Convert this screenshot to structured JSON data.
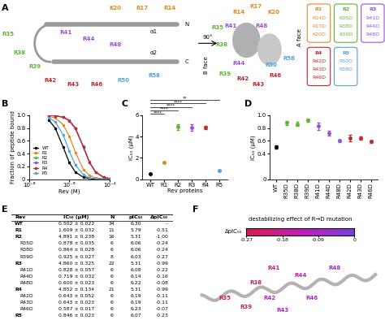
{
  "panel_labels": [
    "A",
    "B",
    "C",
    "D",
    "E",
    "F"
  ],
  "panel_a": {
    "left_view": {
      "labels": [
        "R14",
        "R17",
        "K20",
        "R35",
        "R38",
        "R39",
        "R41",
        "R44",
        "R48",
        "R42",
        "R43",
        "R46",
        "R50",
        "R58"
      ],
      "termini": [
        "N",
        "C"
      ],
      "helices": [
        "α1",
        "α2"
      ]
    },
    "rotation": "90°",
    "right_view": {
      "labels": [
        "R14",
        "R17",
        "K20",
        "R41",
        "R44",
        "R48",
        "R35",
        "R38",
        "R39",
        "R42",
        "R43",
        "R46",
        "R50",
        "R58"
      ],
      "faces": [
        "B face",
        "A face"
      ]
    },
    "groups": [
      {
        "name": "R1",
        "color": "#e08a1e",
        "members": [
          "R14D",
          "R17D",
          "K20D"
        ]
      },
      {
        "name": "R2",
        "color": "#5cb82e",
        "members": [
          "R35D",
          "R38D",
          "R39D"
        ]
      },
      {
        "name": "R3",
        "color": "#9a4fd6",
        "members": [
          "R41D",
          "R44D",
          "R48D"
        ]
      },
      {
        "name": "R4",
        "color": "#c0282d",
        "members": [
          "R42D",
          "R43D",
          "R46D"
        ]
      },
      {
        "name": "R5",
        "color": "#4fa3e0",
        "members": [
          "R50D",
          "R58D"
        ]
      }
    ]
  },
  "chart_data": [
    {
      "type": "line",
      "xlabel": "Rev (M)",
      "ylabel": "Fraction of peptide bound",
      "log": "x",
      "x": [
        1e-07,
        2e-07,
        5e-07,
        1e-06,
        2e-06,
        5e-06,
        1e-05,
        2e-05,
        5e-05,
        0.0001
      ],
      "xlim": [
        1e-08,
        0.0001
      ],
      "xticks": [
        {
          "value": 1e-08,
          "label": "10⁻⁸"
        },
        {
          "value": 1e-06,
          "label": "10⁻⁶"
        },
        {
          "value": 0.0001,
          "label": "10⁻⁴"
        }
      ],
      "ylim": [
        0,
        1.0
      ],
      "yticks": [
        0,
        0.2,
        0.4,
        0.6,
        0.8,
        1.0
      ],
      "legend": "lower left",
      "series": [
        {
          "name": "WT",
          "color": "#000000",
          "values": [
            0.92,
            0.8,
            0.5,
            0.26,
            0.11,
            0.03,
            0.01,
            0.0,
            0.0,
            0.0
          ]
        },
        {
          "name": "R1",
          "color": "#e08a1e",
          "values": [
            0.98,
            0.96,
            0.85,
            0.67,
            0.42,
            0.15,
            0.06,
            0.02,
            0.01,
            0.0
          ]
        },
        {
          "name": "R2",
          "color": "#5cb82e",
          "values": [
            1.0,
            0.99,
            0.97,
            0.92,
            0.8,
            0.5,
            0.26,
            0.11,
            0.03,
            0.01
          ]
        },
        {
          "name": "R3",
          "color": "#9a4fd6",
          "values": [
            1.0,
            0.99,
            0.97,
            0.92,
            0.8,
            0.51,
            0.27,
            0.11,
            0.03,
            0.01
          ]
        },
        {
          "name": "R4",
          "color": "#c0282d",
          "values": [
            1.0,
            0.99,
            0.97,
            0.91,
            0.79,
            0.5,
            0.26,
            0.11,
            0.03,
            0.01
          ]
        },
        {
          "name": "R5",
          "color": "#4fa3e0",
          "values": [
            0.96,
            0.9,
            0.69,
            0.44,
            0.22,
            0.07,
            0.02,
            0.01,
            0.0,
            0.0
          ]
        }
      ]
    },
    {
      "type": "scatter",
      "xlabel": "Rev proteins",
      "ylabel": "IC₅₀ (μM)",
      "categories": [
        "WT",
        "R1",
        "R2",
        "R3",
        "R4",
        "R5"
      ],
      "values": [
        0.502,
        1.609,
        4.891,
        4.86,
        4.852,
        0.846
      ],
      "errors": [
        0.022,
        0.032,
        0.238,
        0.325,
        0.134,
        0.023
      ],
      "colors": [
        "#000000",
        "#e08a1e",
        "#5cb82e",
        "#9a4fd6",
        "#c0282d",
        "#4fa3e0"
      ],
      "ylim": [
        0,
        6
      ],
      "yticks": [
        0,
        2,
        4,
        6
      ],
      "comparisons": [
        {
          "from": "WT",
          "to": "R5",
          "label": "**"
        },
        {
          "from": "WT",
          "to": "R4",
          "label": "****"
        },
        {
          "from": "WT",
          "to": "R3",
          "label": "****"
        },
        {
          "from": "WT",
          "to": "R2",
          "label": "****"
        },
        {
          "from": "WT",
          "to": "R1",
          "label": "****"
        }
      ]
    },
    {
      "type": "scatter",
      "ylabel": "IC₅₀ (μM)",
      "categories": [
        "WT",
        "R35D",
        "R38D",
        "R39D",
        "R41D",
        "R44D",
        "R48D",
        "R42D",
        "R43D",
        "R46D"
      ],
      "values": [
        0.502,
        0.878,
        0.864,
        0.925,
        0.828,
        0.719,
        0.6,
        0.643,
        0.643,
        0.587
      ],
      "errors": [
        0.022,
        0.035,
        0.028,
        0.027,
        0.057,
        0.032,
        0.023,
        0.052,
        0.023,
        0.017
      ],
      "colors": [
        "#000000",
        "#5cb82e",
        "#5cb82e",
        "#5cb82e",
        "#9a4fd6",
        "#9a4fd6",
        "#9a4fd6",
        "#c0282d",
        "#c0282d",
        "#c0282d"
      ],
      "ylim": [
        0,
        1.0
      ],
      "yticks": [
        0,
        0.4,
        0.6,
        0.8,
        1.0
      ]
    }
  ],
  "table": {
    "columns": [
      "Rev",
      "IC₅₀ (μM)",
      "N",
      "pIC₅₀",
      "ΔpIC₅₀"
    ],
    "rows": [
      [
        "WT",
        "0.502 ± 0.022",
        "34",
        "6.30",
        "–"
      ],
      [
        "R1",
        "1.609 ± 0.032",
        "11",
        "5.79",
        "-0.51"
      ],
      [
        "R2",
        "4.891 ± 0.238",
        "16",
        "5.31",
        "-1.00"
      ],
      [
        "R35D",
        "0.878 ± 0.035",
        "6",
        "6.06",
        "-0.24"
      ],
      [
        "R38D",
        "0.864 ± 0.028",
        "6",
        "6.06",
        "-0.24"
      ],
      [
        "R39D",
        "0.925 ± 0.027",
        "8",
        "6.03",
        "-0.27"
      ],
      [
        "R3",
        "4.860 ± 0.325",
        "22",
        "5.31",
        "-0.99"
      ],
      [
        "R41D",
        "0.828 ± 0.057",
        "6",
        "6.08",
        "-0.22"
      ],
      [
        "R44D",
        "0.719 ± 0.032",
        "6",
        "6.14",
        "-0.16"
      ],
      [
        "R48D",
        "0.600 ± 0.023",
        "6",
        "6.22",
        "-0.08"
      ],
      [
        "R4",
        "4.852 ± 0.134",
        "21",
        "5.31",
        "-0.99"
      ],
      [
        "R42D",
        "0.643 ± 0.052",
        "6",
        "6.19",
        "-0.11"
      ],
      [
        "R43D",
        "0.643 ± 0.023",
        "6",
        "6.19",
        "-0.11"
      ],
      [
        "R46D",
        "0.587 ± 0.017",
        "6",
        "6.23",
        "-0.07"
      ],
      [
        "R5",
        "0.846 ± 0.023",
        "6",
        "6.07",
        "-0.23"
      ]
    ]
  },
  "panel_f": {
    "colorbar": {
      "title": "destabilizing effect of R→D mutation",
      "label": "ΔpIC₅₀",
      "range": [
        -0.27,
        0
      ],
      "ticks": [
        -0.27,
        -0.18,
        -0.09,
        0
      ]
    },
    "residues": [
      {
        "name": "R35",
        "delta": -0.24
      },
      {
        "name": "R38",
        "delta": -0.24
      },
      {
        "name": "R39",
        "delta": -0.27
      },
      {
        "name": "R41",
        "delta": -0.22
      },
      {
        "name": "R44",
        "delta": -0.16
      },
      {
        "name": "R48",
        "delta": -0.08
      },
      {
        "name": "R42",
        "delta": -0.11
      },
      {
        "name": "R43",
        "delta": -0.11
      },
      {
        "name": "R46",
        "delta": -0.07
      }
    ]
  }
}
